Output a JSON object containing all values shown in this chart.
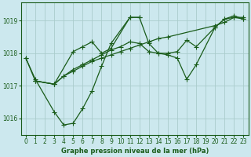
{
  "title": "Graphe pression niveau de la mer (hPa)",
  "bg_color": "#cce8ee",
  "grid_color": "#aacccc",
  "line_color": "#1a5c1a",
  "xlim": [
    -0.5,
    23.5
  ],
  "ylim": [
    1015.5,
    1019.55
  ],
  "yticks": [
    1016,
    1017,
    1018,
    1019
  ],
  "xticks": [
    0,
    1,
    2,
    3,
    4,
    5,
    6,
    7,
    8,
    9,
    10,
    11,
    12,
    13,
    14,
    15,
    16,
    17,
    18,
    19,
    20,
    21,
    22,
    23
  ],
  "line1_x": [
    0,
    1,
    3,
    4,
    5,
    6,
    7,
    8,
    9,
    11,
    12
  ],
  "line1_y": [
    1017.85,
    1017.2,
    1016.2,
    1015.8,
    1015.85,
    1016.3,
    1016.85,
    1017.6,
    1018.3,
    1019.1,
    1019.1
  ],
  "line2_x": [
    1,
    3,
    4,
    5,
    6,
    7,
    8,
    9,
    10,
    11,
    12,
    13,
    14,
    15,
    20,
    21,
    22,
    23
  ],
  "line2_y": [
    1017.15,
    1017.05,
    1017.3,
    1017.45,
    1017.6,
    1017.75,
    1017.85,
    1017.95,
    1018.05,
    1018.15,
    1018.25,
    1018.35,
    1018.45,
    1018.5,
    1018.85,
    1018.95,
    1019.1,
    1019.1
  ],
  "line3_x": [
    1,
    3,
    4,
    5,
    6,
    7,
    8,
    9,
    10,
    11,
    12,
    13,
    14,
    15,
    16,
    17,
    18,
    20,
    21,
    22,
    23
  ],
  "line3_y": [
    1017.15,
    1017.05,
    1017.3,
    1017.5,
    1017.65,
    1017.8,
    1017.95,
    1018.1,
    1018.2,
    1018.35,
    1018.3,
    1018.05,
    1018.0,
    1017.95,
    1017.85,
    1017.2,
    1017.65,
    1018.8,
    1019.05,
    1019.1,
    1019.05
  ],
  "line4_x": [
    0,
    1,
    3,
    5,
    6,
    7,
    8,
    9,
    11,
    12,
    13,
    14,
    15,
    16,
    17,
    18,
    20,
    21,
    22,
    23
  ],
  "line4_y": [
    1017.85,
    1017.15,
    1017.05,
    1018.05,
    1018.2,
    1018.35,
    1018.0,
    1018.15,
    1019.1,
    1019.1,
    1018.3,
    1018.0,
    1018.0,
    1018.05,
    1018.4,
    1018.2,
    1018.8,
    1019.05,
    1019.15,
    1019.05
  ]
}
